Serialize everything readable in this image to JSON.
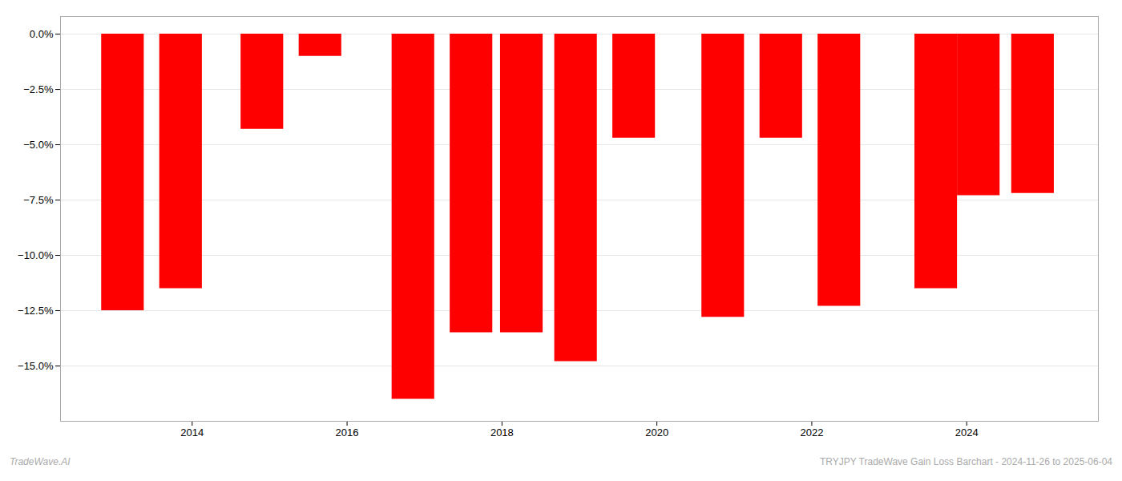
{
  "chart_data": {
    "type": "bar",
    "x": [
      2013.1,
      2013.85,
      2014.9,
      2015.65,
      2016.85,
      2017.6,
      2018.25,
      2018.95,
      2019.7,
      2020.85,
      2021.6,
      2022.35,
      2023.6,
      2024.15,
      2024.85
    ],
    "values": [
      -12.5,
      -11.5,
      -4.3,
      -1.0,
      -16.5,
      -13.5,
      -13.5,
      -14.8,
      -4.7,
      -12.8,
      -4.7,
      -12.3,
      -11.5,
      -7.3,
      -7.2
    ],
    "color": "#ff0000",
    "xlim": [
      2012.3,
      2025.7
    ],
    "xticks": [
      2014,
      2016,
      2018,
      2020,
      2022,
      2024
    ],
    "ylim": [
      -17.5,
      0.8
    ],
    "yticks": [
      {
        "value": 0.0,
        "label": "0.0%"
      },
      {
        "value": -2.5,
        "label": "−2.5%"
      },
      {
        "value": -5.0,
        "label": "−5.0%"
      },
      {
        "value": -7.5,
        "label": "−7.5%"
      },
      {
        "value": -10.0,
        "label": "−10.0%"
      },
      {
        "value": -12.5,
        "label": "−12.5%"
      },
      {
        "value": -15.0,
        "label": "−15.0%"
      }
    ],
    "grid": true,
    "annotations": [
      "TradeWave.AI",
      "TRYJPY TradeWave Gain Loss Barchart - 2024-11-26 to 2025-06-04"
    ]
  }
}
